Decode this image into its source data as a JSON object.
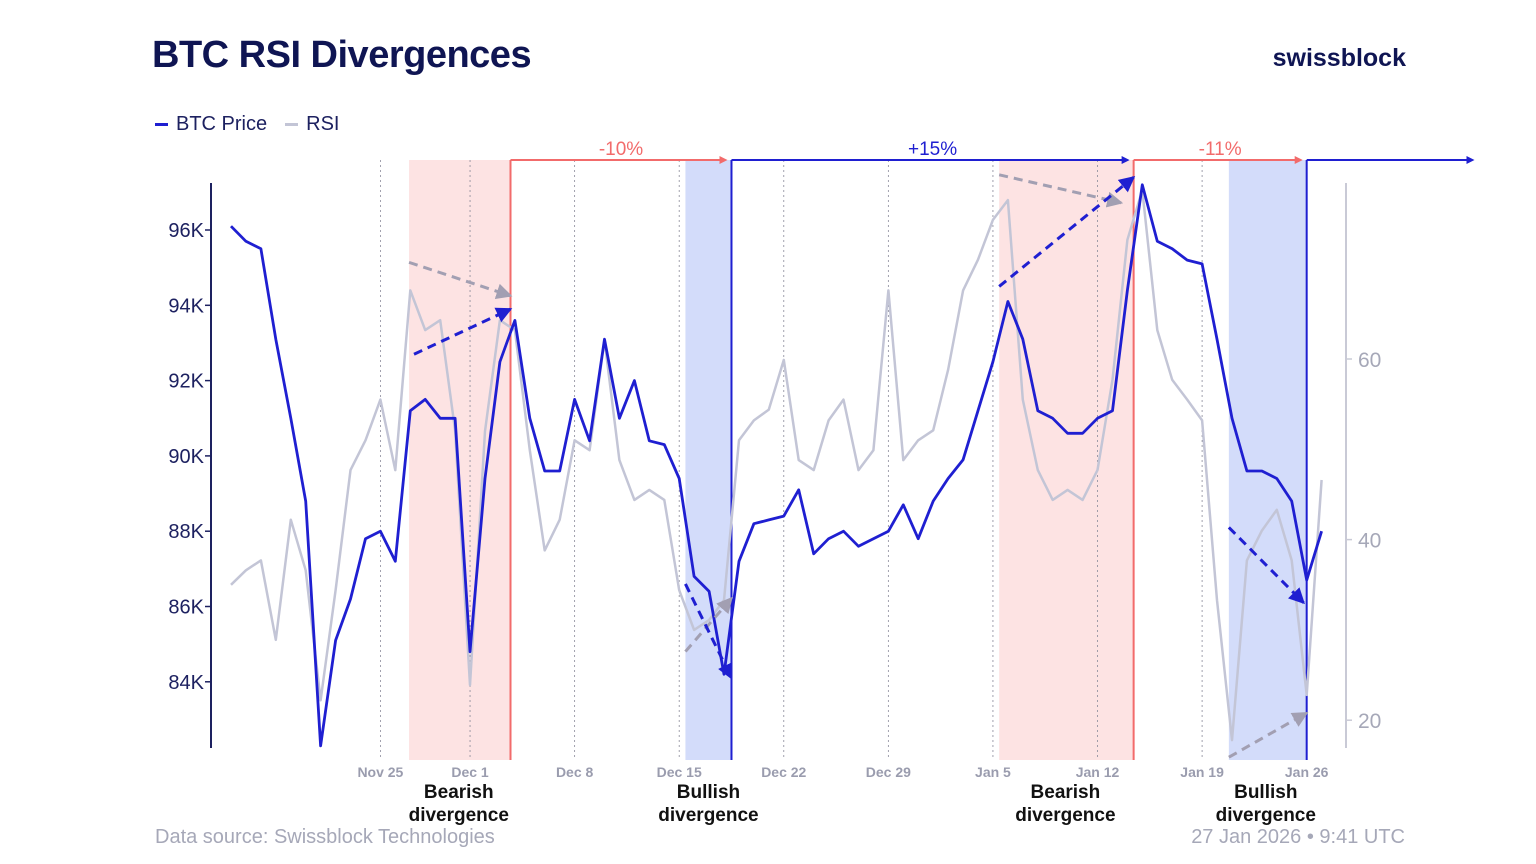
{
  "title": "BTC RSI Divergences",
  "brand": "swissblock",
  "footer": {
    "source": "Data source: Swissblock Technologies",
    "timestamp": "27 Jan 2026 • 9:41 UTC"
  },
  "chart_data": {
    "type": "line",
    "title": "BTC RSI Divergences",
    "legend": {
      "placement": "top-left",
      "entries": [
        "BTC Price",
        "RSI"
      ]
    },
    "colors": {
      "price": "#1f1fd1",
      "rsi": "#c3c5d6",
      "bearish": "#f26b6b",
      "bearish_fill": "#fde3e3",
      "bullish_fill": "#d3dcfa",
      "bullish": "#1f1fd1"
    },
    "x_ticks": [
      [
        "2025-11-25",
        "Nov 25"
      ],
      [
        "2025-12-01",
        "Dec 1"
      ],
      [
        "2025-12-08",
        "Dec 8"
      ],
      [
        "2025-12-15",
        "Dec 15"
      ],
      [
        "2025-12-22",
        "Dec 22"
      ],
      [
        "2025-12-29",
        "Dec 29"
      ],
      [
        "2026-01-05",
        "Jan 5"
      ],
      [
        "2026-01-12",
        "Jan 12"
      ],
      [
        "2026-01-19",
        "Jan 19"
      ],
      [
        "2026-01-26",
        "Jan 26"
      ]
    ],
    "y_left": {
      "ticks": [
        84,
        86,
        88,
        90,
        92,
        94,
        96
      ],
      "labels": [
        "84K",
        "86K",
        "88K",
        "90K",
        "92K",
        "94K",
        "96K"
      ],
      "unit": "K USD"
    },
    "y_right": {
      "ticks": [
        20,
        40,
        60
      ],
      "labels": [
        "20",
        "40",
        "60"
      ]
    },
    "grid": "vertical dotted at x ticks",
    "dates": [
      "2025-11-15",
      "2025-11-16",
      "2025-11-17",
      "2025-11-18",
      "2025-11-19",
      "2025-11-20",
      "2025-11-21",
      "2025-11-22",
      "2025-11-23",
      "2025-11-24",
      "2025-11-25",
      "2025-11-26",
      "2025-11-27",
      "2025-11-28",
      "2025-11-29",
      "2025-11-30",
      "2025-12-01",
      "2025-12-02",
      "2025-12-03",
      "2025-12-04",
      "2025-12-05",
      "2025-12-06",
      "2025-12-07",
      "2025-12-08",
      "2025-12-09",
      "2025-12-10",
      "2025-12-11",
      "2025-12-12",
      "2025-12-13",
      "2025-12-14",
      "2025-12-15",
      "2025-12-16",
      "2025-12-17",
      "2025-12-18",
      "2025-12-19",
      "2025-12-20",
      "2025-12-21",
      "2025-12-22",
      "2025-12-23",
      "2025-12-24",
      "2025-12-25",
      "2025-12-26",
      "2025-12-27",
      "2025-12-28",
      "2025-12-29",
      "2025-12-30",
      "2025-12-31",
      "2026-01-01",
      "2026-01-02",
      "2026-01-03",
      "2026-01-04",
      "2026-01-05",
      "2026-01-06",
      "2026-01-07",
      "2026-01-08",
      "2026-01-09",
      "2026-01-10",
      "2026-01-11",
      "2026-01-12",
      "2026-01-13",
      "2026-01-14",
      "2026-01-15",
      "2026-01-16",
      "2026-01-17",
      "2026-01-18",
      "2026-01-19",
      "2026-01-20",
      "2026-01-21",
      "2026-01-22",
      "2026-01-23",
      "2026-01-24",
      "2026-01-25",
      "2026-01-26",
      "2026-01-27"
    ],
    "series": [
      {
        "name": "BTC Price",
        "axis": "left",
        "values": [
          96.1,
          95.7,
          95.5,
          93.1,
          91,
          88.8,
          82.3,
          85.1,
          86.2,
          87.8,
          88,
          87.2,
          91.2,
          91.5,
          91,
          91,
          84.8,
          89.4,
          92.5,
          93.6,
          91,
          89.6,
          89.6,
          91.5,
          90.4,
          93.1,
          91,
          92,
          90.4,
          90.3,
          89.4,
          86.8,
          86.4,
          84.2,
          87.2,
          88.2,
          88.3,
          88.4,
          89.1,
          87.4,
          87.8,
          88,
          87.6,
          87.8,
          88,
          88.7,
          87.8,
          88.8,
          89.4,
          89.9,
          91.2,
          92.5,
          94.1,
          93.1,
          91.2,
          91,
          90.6,
          90.6,
          91,
          91.2,
          94.4,
          97.2,
          95.7,
          95.5,
          95.2,
          95.1,
          93.1,
          91,
          89.6,
          89.6,
          89.4,
          88.8,
          86.7,
          88
        ]
      },
      {
        "name": "RSI",
        "axis": "right",
        "values": [
          35,
          36.6,
          37.7,
          28.9,
          42.2,
          36.6,
          22.2,
          34.4,
          47.7,
          51,
          55.5,
          47.7,
          67.6,
          63.2,
          64.3,
          52.1,
          23.9,
          52,
          64.3,
          63.2,
          49.9,
          38.8,
          42.2,
          51,
          49.9,
          62.1,
          48.8,
          44.4,
          45.5,
          44.4,
          34.4,
          30,
          31.1,
          33.3,
          51,
          53.2,
          54.4,
          59.9,
          48.8,
          47.7,
          53.2,
          55.5,
          47.7,
          49.9,
          67.6,
          48.8,
          51,
          52.1,
          58.8,
          67.6,
          71,
          75.4,
          77.6,
          55.5,
          47.7,
          44.4,
          45.5,
          44.4,
          47.7,
          57.7,
          73.2,
          78.7,
          63.2,
          57.7,
          55.5,
          53.2,
          33.3,
          17.8,
          37.7,
          41,
          43.3,
          37.7,
          22.8,
          46.6
        ]
      }
    ],
    "regions": [
      {
        "kind": "bearish",
        "label1": "Bearish",
        "label2": "divergence",
        "start": "2025-11-26T22:00",
        "end": "2025-12-03T17:00",
        "price_arrow": [
          [
            "2025-11-27T06:00",
            92.7
          ],
          [
            "2025-12-03T17:00",
            93.9
          ]
        ],
        "rsi_arrow": [
          [
            "2025-11-26T22:00",
            70.7
          ],
          [
            "2025-12-03T17:00",
            67
          ]
        ]
      },
      {
        "kind": "bullish",
        "label1": "Bullish",
        "label2": "divergence",
        "start": "2025-12-15T10:00",
        "end": "2025-12-18T12:00",
        "price_arrow": [
          [
            "2025-12-15T10:00",
            86.6
          ],
          [
            "2025-12-18T12:00",
            84.1
          ]
        ],
        "rsi_arrow": [
          [
            "2025-12-15T10:00",
            27.6
          ],
          [
            "2025-12-18T12:00",
            33.5
          ]
        ]
      },
      {
        "kind": "bearish",
        "label1": "Bearish",
        "label2": "divergence",
        "start": "2026-01-05T10:00",
        "end": "2026-01-14T10:00",
        "price_arrow": [
          [
            "2026-01-05T10:00",
            94.5
          ],
          [
            "2026-01-14T10:00",
            97.4
          ]
        ],
        "rsi_arrow": [
          [
            "2026-01-05T10:00",
            80.4
          ],
          [
            "2026-01-13T14:00",
            77.3
          ]
        ]
      },
      {
        "kind": "bullish",
        "label1": "Bullish",
        "label2": "divergence",
        "start": "2026-01-20T19:00",
        "end": "2026-01-26T00:00",
        "price_arrow": [
          [
            "2026-01-20T19:00",
            88.1
          ],
          [
            "2026-01-25T19:00",
            86.1
          ]
        ],
        "rsi_arrow": [
          [
            "2026-01-20T19:00",
            15.9
          ],
          [
            "2026-01-26T00:00",
            20.8
          ]
        ]
      }
    ],
    "moves": [
      {
        "label": "-10%",
        "from": "2025-12-03T17:00",
        "to": "2025-12-18T12:00",
        "kind": "bearish"
      },
      {
        "label": "+15%",
        "from": "2025-12-18T12:00",
        "to": "2026-01-14T10:00",
        "kind": "bullish"
      },
      {
        "label": "-11%",
        "from": "2026-01-14T10:00",
        "to": "2026-01-26T00:00",
        "kind": "bearish"
      },
      {
        "label": "",
        "from": "2026-01-26T00:00",
        "to": "2026-02-06T12:00",
        "kind": "bullish"
      }
    ]
  }
}
